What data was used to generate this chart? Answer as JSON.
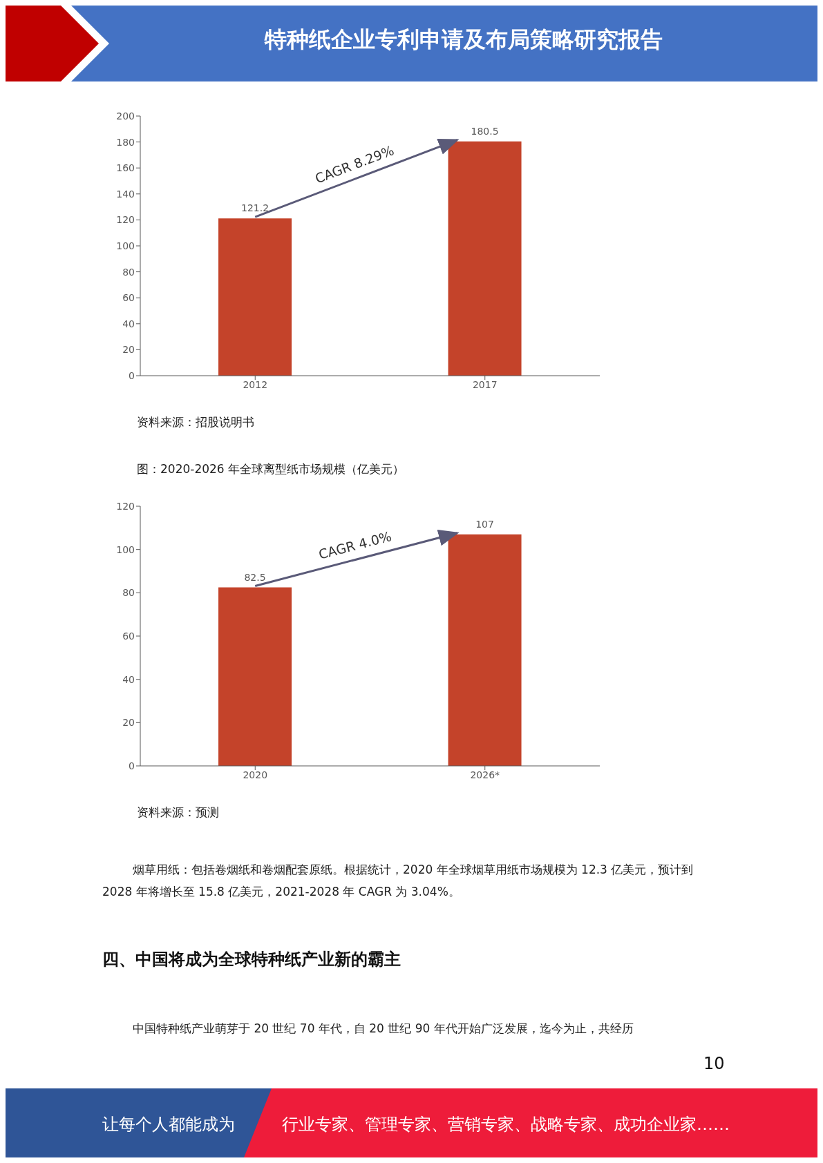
{
  "chart_data": [
    {
      "type": "bar",
      "categories": [
        "2012",
        "2017"
      ],
      "values": [
        121.2,
        180.5
      ],
      "color": "#c4432a",
      "ylim": [
        0,
        200
      ],
      "yticks": [
        0,
        20,
        40,
        60,
        80,
        100,
        120,
        140,
        160,
        180,
        200
      ],
      "grid": false,
      "data_labels": true,
      "annotations": [
        "CAGR 8.29%",
        "资料来源：招股说明书",
        "特种纸企业专利申请及布局策略研究报告"
      ]
    },
    {
      "type": "bar",
      "title": "图：2020-2026 年全球离型纸市场规模（亿美元）",
      "categories": [
        "2020",
        "2026*"
      ],
      "values": [
        82.5,
        107
      ],
      "color": "#c4432a",
      "ylim": [
        0,
        120
      ],
      "yticks": [
        0,
        20,
        40,
        60,
        80,
        100,
        120
      ],
      "grid": false,
      "data_labels": true,
      "annotations": [
        "CAGR 4.0%",
        "资料来源：预测",
        "烟草用纸：包括卷烟纸和卷烟配套原纸。根据统计，2020 年全球烟草用纸市场规模为 12.3 亿美元，预计到 2028 年将增长至 15.8 亿美元，2021-2028 年 CAGR 为 3.04%。",
        "四、中国将成为全球特种纸产业新的霸主",
        "中国特种纸产业萌芽于 20 世纪 70 年代，自 20 世纪 90 年代开始广泛发展，迄今为止，共经历",
        "10",
        "让每个人都能成为",
        "行业专家、管理专家、营销专家、战略专家、成功企业家……"
      ]
    }
  ]
}
